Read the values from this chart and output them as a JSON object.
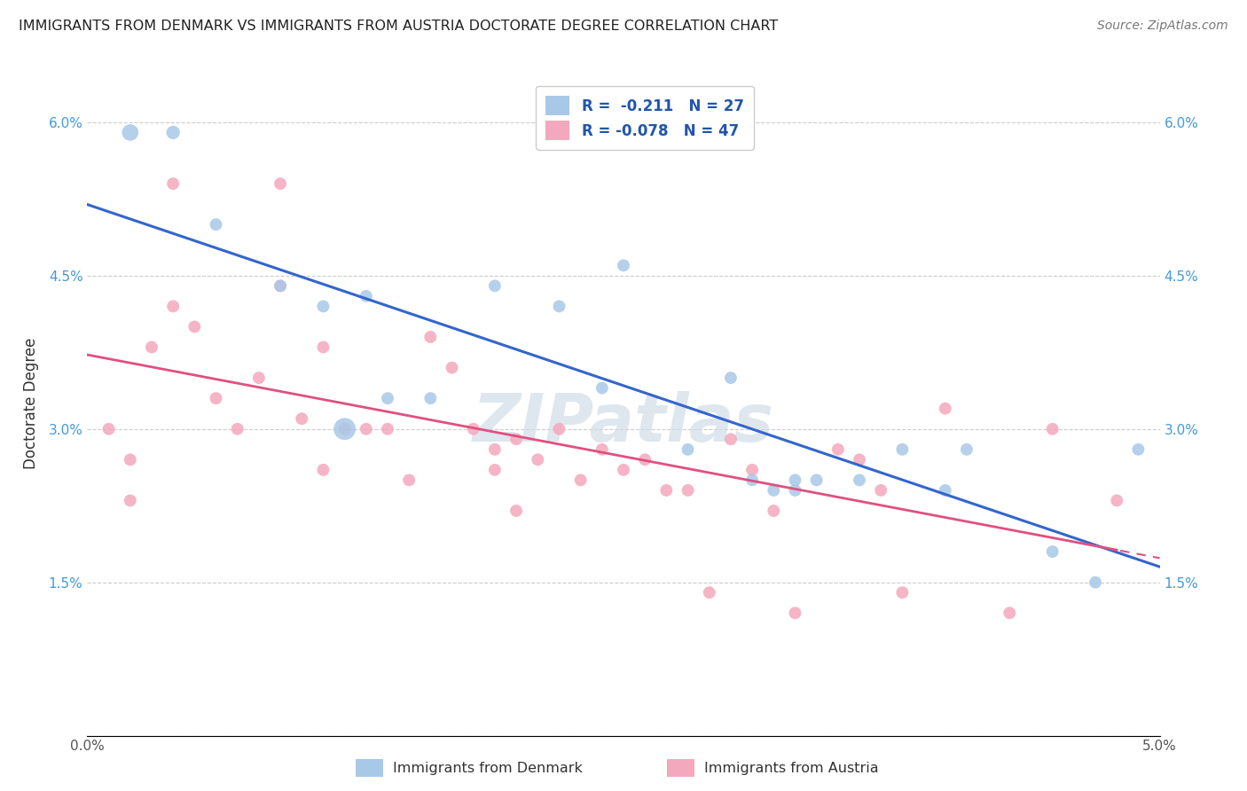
{
  "title": "IMMIGRANTS FROM DENMARK VS IMMIGRANTS FROM AUSTRIA DOCTORATE DEGREE CORRELATION CHART",
  "source": "Source: ZipAtlas.com",
  "ylabel": "Doctorate Degree",
  "xlim": [
    0.0,
    0.05
  ],
  "ylim": [
    0.0,
    0.065
  ],
  "xticks": [
    0.0,
    0.01,
    0.02,
    0.03,
    0.04,
    0.05
  ],
  "xticklabels": [
    "0.0%",
    "",
    "",
    "",
    "",
    "5.0%"
  ],
  "yticks": [
    0.0,
    0.015,
    0.03,
    0.045,
    0.06
  ],
  "yticklabels": [
    "",
    "1.5%",
    "3.0%",
    "4.5%",
    "6.0%"
  ],
  "denmark_color": "#a8c8e8",
  "austria_color": "#f4a8be",
  "denmark_line_color": "#3366cc",
  "austria_line_color": "#e05080",
  "watermark": "ZIPatlas",
  "denmark_x": [
    0.002,
    0.004,
    0.006,
    0.009,
    0.011,
    0.012,
    0.013,
    0.014,
    0.016,
    0.019,
    0.022,
    0.024,
    0.025,
    0.028,
    0.03,
    0.031,
    0.032,
    0.033,
    0.033,
    0.034,
    0.036,
    0.038,
    0.04,
    0.041,
    0.045,
    0.047,
    0.049
  ],
  "denmark_y": [
    0.059,
    0.059,
    0.05,
    0.044,
    0.042,
    0.03,
    0.043,
    0.033,
    0.033,
    0.044,
    0.042,
    0.034,
    0.046,
    0.028,
    0.035,
    0.025,
    0.024,
    0.025,
    0.024,
    0.025,
    0.025,
    0.028,
    0.024,
    0.028,
    0.018,
    0.015,
    0.028
  ],
  "denmark_size": [
    180,
    120,
    100,
    100,
    100,
    320,
    100,
    100,
    100,
    100,
    100,
    100,
    100,
    100,
    100,
    100,
    100,
    100,
    100,
    100,
    100,
    100,
    100,
    100,
    100,
    100,
    100
  ],
  "austria_x": [
    0.001,
    0.002,
    0.002,
    0.003,
    0.004,
    0.004,
    0.005,
    0.006,
    0.007,
    0.008,
    0.009,
    0.009,
    0.01,
    0.011,
    0.011,
    0.012,
    0.013,
    0.014,
    0.015,
    0.016,
    0.017,
    0.018,
    0.019,
    0.019,
    0.02,
    0.02,
    0.021,
    0.022,
    0.023,
    0.024,
    0.025,
    0.026,
    0.027,
    0.028,
    0.029,
    0.03,
    0.031,
    0.032,
    0.033,
    0.035,
    0.036,
    0.037,
    0.038,
    0.04,
    0.043,
    0.045,
    0.048
  ],
  "austria_y": [
    0.03,
    0.027,
    0.023,
    0.038,
    0.054,
    0.042,
    0.04,
    0.033,
    0.03,
    0.035,
    0.054,
    0.044,
    0.031,
    0.038,
    0.026,
    0.03,
    0.03,
    0.03,
    0.025,
    0.039,
    0.036,
    0.03,
    0.028,
    0.026,
    0.029,
    0.022,
    0.027,
    0.03,
    0.025,
    0.028,
    0.026,
    0.027,
    0.024,
    0.024,
    0.014,
    0.029,
    0.026,
    0.022,
    0.012,
    0.028,
    0.027,
    0.024,
    0.014,
    0.032,
    0.012,
    0.03,
    0.023
  ],
  "austria_size": [
    100,
    100,
    100,
    100,
    100,
    100,
    100,
    100,
    100,
    100,
    100,
    100,
    100,
    100,
    100,
    100,
    100,
    100,
    100,
    100,
    100,
    100,
    100,
    100,
    100,
    100,
    100,
    100,
    100,
    100,
    100,
    100,
    100,
    100,
    100,
    100,
    100,
    100,
    100,
    100,
    100,
    100,
    100,
    100,
    100,
    100,
    100
  ]
}
